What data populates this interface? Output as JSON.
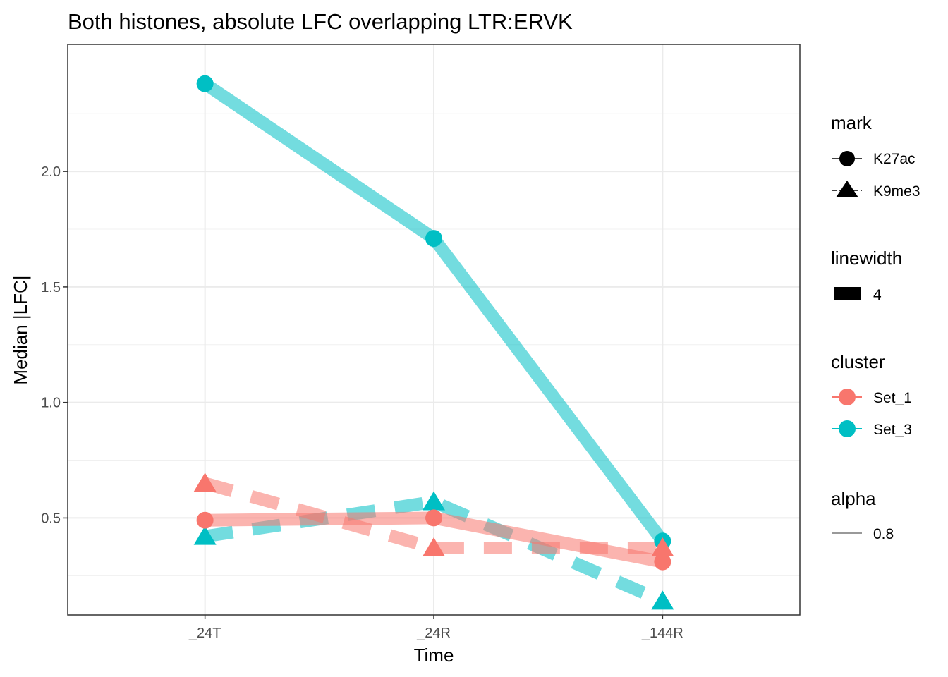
{
  "chart_data": {
    "type": "line",
    "title": "Both histones, absolute LFC overlapping LTR:ERVK",
    "xlabel": "Time",
    "ylabel": "Median |LFC|",
    "categories": [
      "_24T",
      "_24R",
      "_144R"
    ],
    "ylim": [
      0.08,
      2.55
    ],
    "yticks": [
      0.5,
      1.0,
      1.5,
      2.0
    ],
    "ytick_labels": [
      "0.5",
      "1.0",
      "1.5",
      "2.0"
    ],
    "grid": true,
    "series": [
      {
        "name": "Set_3 K27ac",
        "cluster": "Set_3",
        "mark": "K27ac",
        "color": "#00bfc4",
        "dashed": false,
        "marker": "circle",
        "values": [
          2.38,
          1.71,
          0.4
        ]
      },
      {
        "name": "Set_3 K9me3",
        "cluster": "Set_3",
        "mark": "K9me3",
        "color": "#00bfc4",
        "dashed": true,
        "marker": "triangle",
        "values": [
          0.42,
          0.57,
          0.14
        ]
      },
      {
        "name": "Set_1 K27ac",
        "cluster": "Set_1",
        "mark": "K27ac",
        "color": "#f8766d",
        "dashed": false,
        "marker": "circle",
        "values": [
          0.49,
          0.5,
          0.31
        ]
      },
      {
        "name": "Set_1 K9me3",
        "cluster": "Set_1",
        "mark": "K9me3",
        "color": "#f8766d",
        "dashed": true,
        "marker": "triangle",
        "values": [
          0.65,
          0.37,
          0.37
        ]
      }
    ],
    "legend": {
      "placement": "right",
      "mark": {
        "title": "mark",
        "items": [
          "K27ac",
          "K9me3"
        ]
      },
      "linewidth": {
        "title": "linewidth",
        "items": [
          "4"
        ]
      },
      "cluster": {
        "title": "cluster",
        "items": [
          {
            "label": "Set_1",
            "color": "#f8766d"
          },
          {
            "label": "Set_3",
            "color": "#00bfc4"
          }
        ]
      },
      "alpha": {
        "title": "alpha",
        "items": [
          "0.8"
        ]
      }
    }
  }
}
